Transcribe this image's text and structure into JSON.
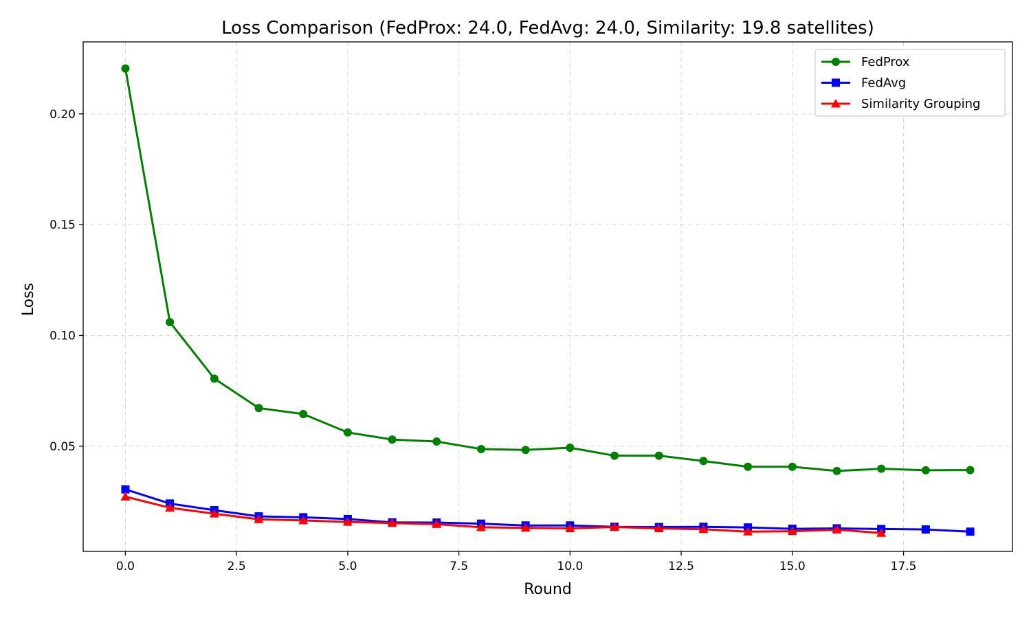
{
  "chart_data": {
    "type": "line",
    "title": "Loss Comparison (FedProx: 24.0, FedAvg: 24.0, Similarity: 19.8 satellites)",
    "xlabel": "Round",
    "ylabel": "Loss",
    "xlim": [
      -0.95,
      19.95
    ],
    "ylim": [
      0.0025,
      0.2325
    ],
    "xticks": [
      0,
      2.5,
      5,
      7.5,
      10,
      12.5,
      15,
      17.5
    ],
    "xtick_labels": [
      "0.0",
      "2.5",
      "5.0",
      "7.5",
      "10.0",
      "12.5",
      "15.0",
      "17.5"
    ],
    "yticks": [
      0.05,
      0.1,
      0.15,
      0.2
    ],
    "ytick_labels": [
      "0.05",
      "0.10",
      "0.15",
      "0.20"
    ],
    "grid": true,
    "legend_position": "top-right",
    "series": [
      {
        "name": "FedProx",
        "color": "#008000",
        "marker": "circle",
        "x": [
          0,
          1,
          2,
          3,
          4,
          5,
          6,
          7,
          8,
          9,
          10,
          11,
          12,
          13,
          14,
          15,
          16,
          17,
          18,
          19
        ],
        "values": [
          0.2205,
          0.106,
          0.0805,
          0.0672,
          0.0645,
          0.0562,
          0.053,
          0.0521,
          0.0487,
          0.0483,
          0.0493,
          0.0457,
          0.0457,
          0.0433,
          0.0407,
          0.0407,
          0.0388,
          0.0398,
          0.0391,
          0.0392
        ]
      },
      {
        "name": "FedAvg",
        "color": "#0000ff",
        "marker": "square",
        "x": [
          0,
          1,
          2,
          3,
          4,
          5,
          6,
          7,
          8,
          9,
          10,
          11,
          12,
          13,
          14,
          15,
          16,
          17,
          18,
          19
        ],
        "values": [
          0.0305,
          0.0241,
          0.0211,
          0.0183,
          0.0179,
          0.0171,
          0.0156,
          0.0155,
          0.015,
          0.0142,
          0.0142,
          0.0136,
          0.0135,
          0.0136,
          0.0133,
          0.0127,
          0.0129,
          0.0126,
          0.0124,
          0.0114
        ]
      },
      {
        "name": "Similarity Grouping",
        "color": "#ff0000",
        "marker": "triangle",
        "x": [
          0,
          1,
          2,
          3,
          4,
          5,
          6,
          7,
          8,
          9,
          10,
          11,
          12,
          13,
          14,
          15,
          16,
          17
        ],
        "values": [
          0.0272,
          0.0222,
          0.0195,
          0.017,
          0.0165,
          0.0158,
          0.0153,
          0.0148,
          0.0134,
          0.0131,
          0.0129,
          0.0135,
          0.0129,
          0.0125,
          0.0114,
          0.0116,
          0.0123,
          0.0108
        ]
      }
    ]
  }
}
